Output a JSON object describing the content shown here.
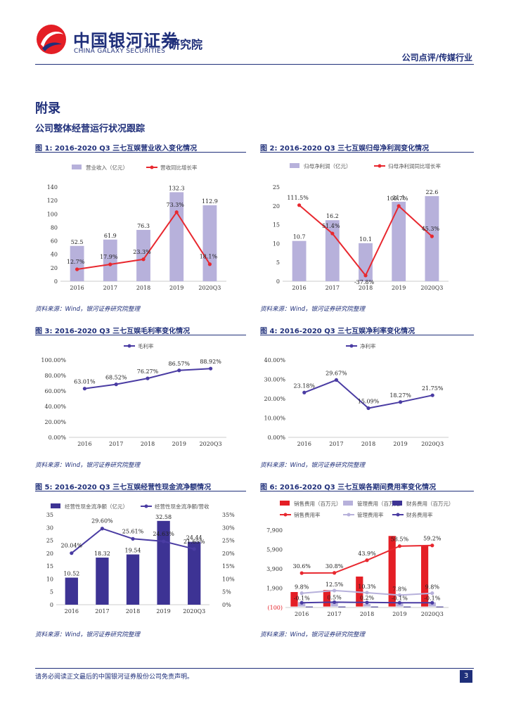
{
  "header": {
    "logo_cn": "中国银河证券",
    "logo_en": "CHINA GALAXY SECURITIES",
    "institute": "研究院",
    "category": "公司点评/传媒行业"
  },
  "section": {
    "title": "附录",
    "subtitle": "公司整体经营运行状况跟踪"
  },
  "colors": {
    "brand": "#1f2f7a",
    "bar_light": "#b7b1db",
    "bar_dark": "#3d3394",
    "line_red": "#e8282f",
    "line_purple": "#4a3ca3",
    "bar_red": "#e41e25",
    "line_lilac": "#b7b1db"
  },
  "source_text": "资料来源：Wind，银河证券研究院整理",
  "footer": {
    "disclaimer": "请务必阅读正文最后的中国银河证券股份公司免责声明。",
    "page": "3"
  },
  "chart_data": [
    {
      "id": "fig1",
      "type": "bar+line",
      "title": "图 1: 2016-2020 Q3 三七互娱营业收入变化情况",
      "categories": [
        "2016",
        "2017",
        "2018",
        "2019",
        "2020Q3"
      ],
      "series": [
        {
          "name": "营业收入（亿元）",
          "type": "bar",
          "values": [
            52.5,
            61.9,
            76.3,
            132.3,
            112.9
          ],
          "labels": [
            "52.5",
            "61.9",
            "76.3",
            "132.3",
            "112.9"
          ]
        },
        {
          "name": "营收同比增长率",
          "type": "line",
          "values": [
            12.7,
            17.9,
            23.3,
            73.3,
            18.1
          ],
          "labels": [
            "12.7%",
            "17.9%",
            "23.3%",
            "73.3%",
            "18.1%"
          ]
        }
      ],
      "y_left": {
        "min": 0,
        "max": 140,
        "ticks": [
          "0",
          "20",
          "40",
          "60",
          "80",
          "100",
          "120",
          "140"
        ]
      },
      "y_right": {
        "min": 0,
        "max": 100
      }
    },
    {
      "id": "fig2",
      "type": "bar+line",
      "title": "图 2: 2016-2020 Q3 三七互娱归母净利润变化情况",
      "categories": [
        "2016",
        "2017",
        "2018",
        "2019",
        "2020Q3"
      ],
      "series": [
        {
          "name": "归母净利润（亿元）",
          "type": "bar",
          "values": [
            10.7,
            16.2,
            10.1,
            21.1,
            22.6
          ],
          "labels": [
            "10.7",
            "16.2",
            "10.1",
            "21.1",
            "22.6"
          ]
        },
        {
          "name": "归母净利润同比增长率",
          "type": "line",
          "values": [
            111.5,
            51.4,
            -37.8,
            109.7,
            45.3
          ],
          "labels": [
            "111.5%",
            "51.4%",
            "-37.8%",
            "109.7%",
            "45.3%"
          ]
        }
      ],
      "y_left": {
        "min": 0,
        "max": 25,
        "ticks": [
          "0",
          "5",
          "10",
          "15",
          "20",
          "25"
        ]
      },
      "y_right": {
        "min": -50,
        "max": 150
      }
    },
    {
      "id": "fig3",
      "type": "line",
      "title": "图 3: 2016-2020 Q3 三七互娱毛利率变化情况",
      "categories": [
        "2016",
        "2017",
        "2018",
        "2019",
        "2020Q3"
      ],
      "series": [
        {
          "name": "毛利率",
          "type": "line",
          "values": [
            63.01,
            68.52,
            76.27,
            86.57,
            88.92
          ],
          "labels": [
            "63.01%",
            "68.52%",
            "76.27%",
            "86.57%",
            "88.92%"
          ]
        }
      ],
      "y_left": {
        "min": 0,
        "max": 100,
        "ticks": [
          "0.00%",
          "20.00%",
          "40.00%",
          "60.00%",
          "80.00%",
          "100.00%"
        ]
      }
    },
    {
      "id": "fig4",
      "type": "line",
      "title": "图 4: 2016-2020 Q3 三七互娱净利率变化情况",
      "categories": [
        "2016",
        "2017",
        "2018",
        "2019",
        "2020Q3"
      ],
      "series": [
        {
          "name": "净利率",
          "type": "line",
          "values": [
            23.18,
            29.67,
            15.09,
            18.27,
            21.75
          ],
          "labels": [
            "23.18%",
            "29.67%",
            "15.09%",
            "18.27%",
            "21.75%"
          ]
        }
      ],
      "y_left": {
        "min": 0,
        "max": 40,
        "ticks": [
          "0.00%",
          "10.00%",
          "20.00%",
          "30.00%",
          "40.00%"
        ]
      }
    },
    {
      "id": "fig5",
      "type": "bar+line",
      "title": "图 5: 2016-2020 Q3 三七互娱经营性现金流净额情况",
      "categories": [
        "2016",
        "2017",
        "2018",
        "2019",
        "2020Q3"
      ],
      "series": [
        {
          "name": "经营性现金流净额（亿元）",
          "type": "bar",
          "values": [
            10.52,
            18.32,
            19.54,
            32.58,
            24.44
          ],
          "labels": [
            "10.52",
            "18.32",
            "19.54",
            "32.58",
            "24.44"
          ]
        },
        {
          "name": "经营性现金流净额/营收",
          "type": "line",
          "values": [
            20.04,
            29.6,
            25.61,
            24.63,
            21.65
          ],
          "labels": [
            "20.04%",
            "29.60%",
            "25.61%",
            "24.63%",
            "21.65%"
          ]
        }
      ],
      "y_left": {
        "min": 0,
        "max": 35,
        "ticks": [
          "0",
          "5",
          "10",
          "15",
          "20",
          "25",
          "30",
          "35"
        ]
      },
      "y_right": {
        "min": 0,
        "max": 35,
        "ticks": [
          "0%",
          "5%",
          "10%",
          "15%",
          "20%",
          "25%",
          "30%",
          "35%"
        ]
      }
    },
    {
      "id": "fig6",
      "type": "bar+line",
      "title": "图 6: 2016-2020 Q3 三七互娱各期间费用率变化情况",
      "categories": [
        "2016",
        "2017",
        "2018",
        "2019",
        "2020Q3"
      ],
      "series": [
        {
          "name": "销售费用（百万元）",
          "type": "bar",
          "values": [
            1500,
            1700,
            3100,
            7300,
            6300
          ]
        },
        {
          "name": "管理费用（百万元）",
          "type": "bar",
          "values": [
            450,
            420,
            260,
            380,
            430
          ]
        },
        {
          "name": "财务费用（百万元）",
          "type": "bar",
          "values": [
            -40,
            -20,
            -30,
            -60,
            -50
          ]
        },
        {
          "name": "销售费用率",
          "type": "line",
          "values": [
            30.6,
            30.8,
            43.9,
            58.5,
            59.2
          ],
          "labels": [
            "30.6%",
            "30.8%",
            "43.9%",
            "58.5%",
            "59.2%"
          ]
        },
        {
          "name": "管理费用率",
          "type": "line",
          "values": [
            9.8,
            12.5,
            10.3,
            7.8,
            9.8
          ],
          "labels": [
            "9.8%",
            "12.5%",
            "10.3%",
            "7.8%",
            "9.8%"
          ]
        },
        {
          "name": "财务费用率",
          "type": "line",
          "values": [
            -0.1,
            0.5,
            0.2,
            -0.1,
            -0.1
          ],
          "labels": [
            "-0.1%",
            "0.5%",
            "0.2%",
            "-0.1%",
            "-0.1%"
          ]
        }
      ],
      "y_left": {
        "min": -100,
        "max": 7900,
        "ticks": [
          "(100)",
          "1,900",
          "3,900",
          "5,900",
          "7,900"
        ]
      },
      "y_right": {
        "min": -5,
        "max": 75
      }
    }
  ]
}
